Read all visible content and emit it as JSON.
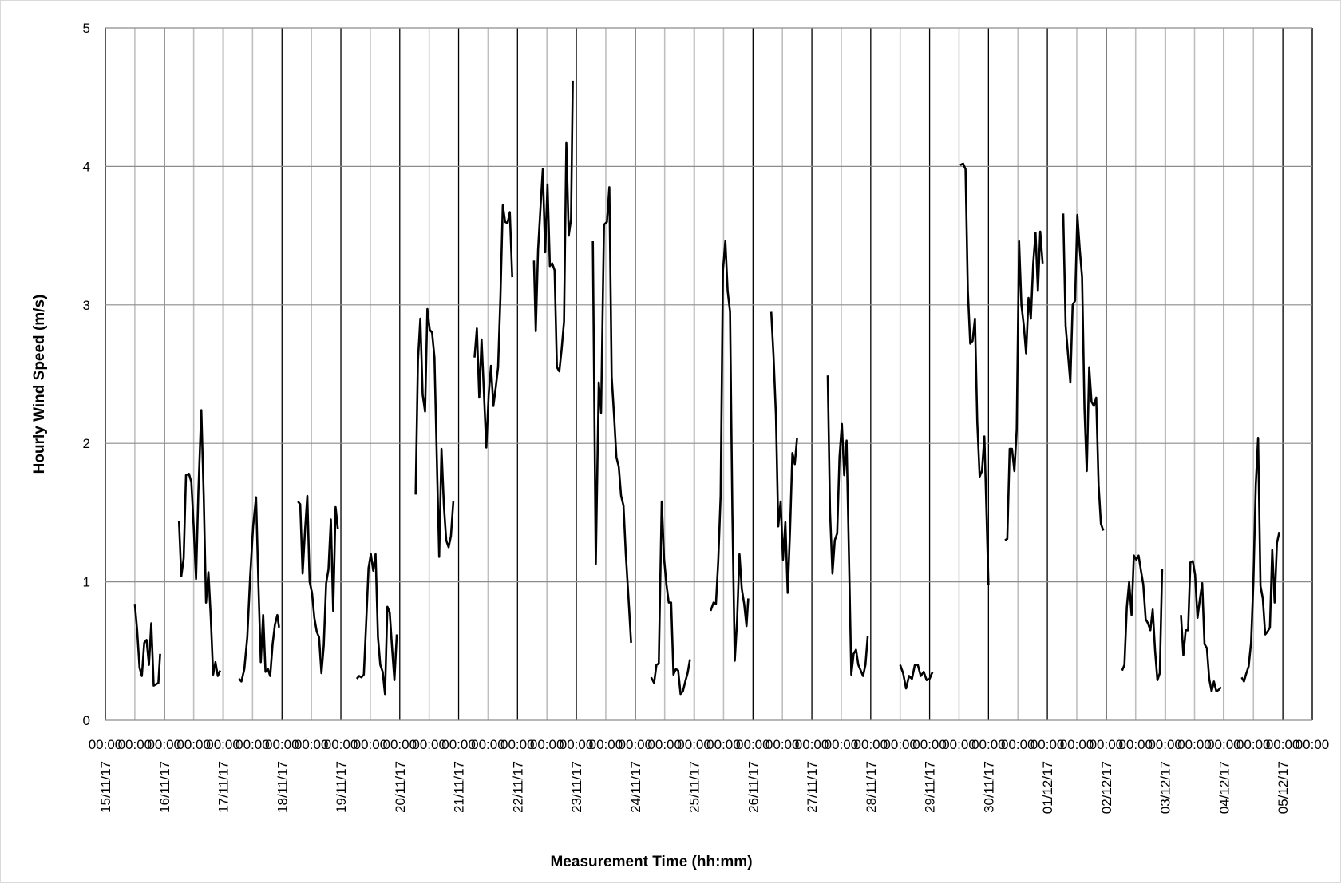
{
  "chart_data": {
    "type": "line",
    "title": "",
    "xlabel": "Measurement Time (hh:mm)",
    "ylabel": "Hourly Wind Speed (m/s)",
    "ylim": [
      0,
      5
    ],
    "yticks": [
      "0",
      "1",
      "2",
      "3",
      "4",
      "5"
    ],
    "x_unit": "day",
    "xlim": [
      0,
      20.5
    ],
    "x_tick_time_label": "00:00",
    "x_date_labels": [
      "15/11/17",
      "16/11/17",
      "17/11/17",
      "18/11/17",
      "19/11/17",
      "20/11/17",
      "21/11/17",
      "22/11/17",
      "23/11/17",
      "24/11/17",
      "25/11/17",
      "26/11/17",
      "27/11/17",
      "28/11/17",
      "29/11/17",
      "30/11/17",
      "01/12/17",
      "02/12/17",
      "03/12/17",
      "04/12/17",
      "05/12/17"
    ],
    "grid": true,
    "legend": "none",
    "line_color": "#000000",
    "grid_major_color": "#000000",
    "grid_minor_color": "#bfbfbf",
    "segments": [
      [
        [
          0.5,
          0.84
        ],
        [
          0.54,
          0.65
        ],
        [
          0.58,
          0.38
        ],
        [
          0.62,
          0.32
        ],
        [
          0.66,
          0.56
        ],
        [
          0.7,
          0.58
        ],
        [
          0.74,
          0.4
        ],
        [
          0.78,
          0.7
        ],
        [
          0.82,
          0.25
        ],
        [
          0.86,
          0.26
        ],
        [
          0.9,
          0.27
        ],
        [
          0.93,
          0.48
        ]
      ],
      [
        [
          1.25,
          1.44
        ],
        [
          1.29,
          1.04
        ],
        [
          1.33,
          1.17
        ],
        [
          1.37,
          1.77
        ],
        [
          1.42,
          1.78
        ],
        [
          1.46,
          1.72
        ],
        [
          1.5,
          1.4
        ],
        [
          1.54,
          1.02
        ],
        [
          1.58,
          1.65
        ],
        [
          1.63,
          2.24
        ],
        [
          1.67,
          1.62
        ],
        [
          1.71,
          0.85
        ],
        [
          1.75,
          1.07
        ],
        [
          1.79,
          0.75
        ],
        [
          1.83,
          0.33
        ],
        [
          1.87,
          0.42
        ],
        [
          1.91,
          0.32
        ],
        [
          1.95,
          0.36
        ]
      ],
      [
        [
          2.27,
          0.3
        ],
        [
          2.31,
          0.28
        ],
        [
          2.36,
          0.37
        ],
        [
          2.41,
          0.6
        ],
        [
          2.46,
          1.04
        ],
        [
          2.51,
          1.4
        ],
        [
          2.56,
          1.61
        ],
        [
          2.6,
          0.97
        ],
        [
          2.64,
          0.42
        ],
        [
          2.68,
          0.76
        ],
        [
          2.72,
          0.35
        ],
        [
          2.76,
          0.37
        ],
        [
          2.8,
          0.32
        ],
        [
          2.84,
          0.55
        ],
        [
          2.88,
          0.69
        ],
        [
          2.92,
          0.76
        ],
        [
          2.95,
          0.67
        ]
      ],
      [
        [
          3.27,
          1.58
        ],
        [
          3.31,
          1.56
        ],
        [
          3.35,
          1.06
        ],
        [
          3.39,
          1.36
        ],
        [
          3.43,
          1.62
        ],
        [
          3.47,
          1.0
        ],
        [
          3.51,
          0.92
        ],
        [
          3.55,
          0.74
        ],
        [
          3.59,
          0.64
        ],
        [
          3.63,
          0.6
        ],
        [
          3.67,
          0.34
        ],
        [
          3.71,
          0.54
        ],
        [
          3.75,
          0.99
        ],
        [
          3.79,
          1.09
        ],
        [
          3.83,
          1.45
        ],
        [
          3.87,
          0.79
        ],
        [
          3.91,
          1.54
        ],
        [
          3.95,
          1.38
        ]
      ],
      [
        [
          4.27,
          0.3
        ],
        [
          4.31,
          0.32
        ],
        [
          4.35,
          0.31
        ],
        [
          4.39,
          0.33
        ],
        [
          4.43,
          0.7
        ],
        [
          4.47,
          1.1
        ],
        [
          4.51,
          1.2
        ],
        [
          4.55,
          1.08
        ],
        [
          4.59,
          1.2
        ],
        [
          4.63,
          0.6
        ],
        [
          4.67,
          0.4
        ],
        [
          4.71,
          0.35
        ],
        [
          4.75,
          0.19
        ],
        [
          4.79,
          0.82
        ],
        [
          4.83,
          0.78
        ],
        [
          4.87,
          0.52
        ],
        [
          4.91,
          0.29
        ],
        [
          4.95,
          0.62
        ]
      ],
      [
        [
          5.27,
          1.63
        ],
        [
          5.31,
          2.6
        ],
        [
          5.35,
          2.9
        ],
        [
          5.39,
          2.35
        ],
        [
          5.43,
          2.23
        ],
        [
          5.47,
          2.97
        ],
        [
          5.51,
          2.82
        ],
        [
          5.55,
          2.8
        ],
        [
          5.59,
          2.62
        ],
        [
          5.63,
          1.9
        ],
        [
          5.67,
          1.18
        ],
        [
          5.71,
          1.96
        ],
        [
          5.75,
          1.55
        ],
        [
          5.79,
          1.3
        ],
        [
          5.83,
          1.25
        ],
        [
          5.87,
          1.33
        ],
        [
          5.91,
          1.58
        ]
      ],
      [
        [
          6.27,
          2.62
        ],
        [
          6.31,
          2.83
        ],
        [
          6.35,
          2.33
        ],
        [
          6.39,
          2.75
        ],
        [
          6.43,
          2.36
        ],
        [
          6.47,
          1.97
        ],
        [
          6.51,
          2.35
        ],
        [
          6.55,
          2.56
        ],
        [
          6.59,
          2.27
        ],
        [
          6.63,
          2.4
        ],
        [
          6.67,
          2.55
        ],
        [
          6.71,
          3.05
        ],
        [
          6.75,
          3.72
        ],
        [
          6.79,
          3.6
        ],
        [
          6.83,
          3.59
        ],
        [
          6.87,
          3.67
        ],
        [
          6.91,
          3.2
        ]
      ],
      [
        [
          7.28,
          3.32
        ],
        [
          7.31,
          2.81
        ],
        [
          7.35,
          3.4
        ],
        [
          7.39,
          3.7
        ],
        [
          7.43,
          3.98
        ],
        [
          7.47,
          3.38
        ],
        [
          7.51,
          3.87
        ],
        [
          7.55,
          3.28
        ],
        [
          7.59,
          3.3
        ],
        [
          7.63,
          3.25
        ],
        [
          7.67,
          2.55
        ],
        [
          7.71,
          2.52
        ],
        [
          7.75,
          2.68
        ],
        [
          7.79,
          2.88
        ],
        [
          7.83,
          4.17
        ],
        [
          7.87,
          3.5
        ],
        [
          7.91,
          3.62
        ],
        [
          7.94,
          4.62
        ]
      ],
      [
        [
          8.28,
          3.46
        ],
        [
          8.33,
          1.13
        ],
        [
          8.38,
          2.44
        ],
        [
          8.42,
          2.22
        ],
        [
          8.47,
          3.58
        ],
        [
          8.52,
          3.6
        ],
        [
          8.56,
          3.85
        ],
        [
          8.6,
          2.48
        ],
        [
          8.64,
          2.2
        ],
        [
          8.68,
          1.9
        ],
        [
          8.72,
          1.83
        ],
        [
          8.76,
          1.62
        ],
        [
          8.8,
          1.55
        ],
        [
          8.84,
          1.2
        ],
        [
          8.89,
          0.85
        ],
        [
          8.93,
          0.56
        ]
      ],
      [
        [
          9.27,
          0.31
        ],
        [
          9.32,
          0.27
        ],
        [
          9.36,
          0.4
        ],
        [
          9.4,
          0.41
        ],
        [
          9.45,
          1.58
        ],
        [
          9.49,
          1.17
        ],
        [
          9.53,
          0.98
        ],
        [
          9.57,
          0.85
        ],
        [
          9.61,
          0.85
        ],
        [
          9.65,
          0.33
        ],
        [
          9.69,
          0.37
        ],
        [
          9.73,
          0.36
        ],
        [
          9.77,
          0.19
        ],
        [
          9.81,
          0.21
        ],
        [
          9.85,
          0.28
        ],
        [
          9.89,
          0.34
        ],
        [
          9.93,
          0.44
        ]
      ],
      [
        [
          10.28,
          0.79
        ],
        [
          10.33,
          0.85
        ],
        [
          10.37,
          0.84
        ],
        [
          10.41,
          1.15
        ],
        [
          10.45,
          1.62
        ],
        [
          10.49,
          3.25
        ],
        [
          10.53,
          3.46
        ],
        [
          10.57,
          3.1
        ],
        [
          10.61,
          2.95
        ],
        [
          10.65,
          1.5
        ],
        [
          10.69,
          0.43
        ],
        [
          10.73,
          0.72
        ],
        [
          10.77,
          1.2
        ],
        [
          10.81,
          0.95
        ],
        [
          10.85,
          0.84
        ],
        [
          10.89,
          0.68
        ],
        [
          10.92,
          0.88
        ]
      ],
      [
        [
          11.31,
          2.95
        ],
        [
          11.35,
          2.63
        ],
        [
          11.39,
          2.2
        ],
        [
          11.43,
          1.4
        ],
        [
          11.47,
          1.58
        ],
        [
          11.51,
          1.16
        ],
        [
          11.55,
          1.43
        ],
        [
          11.59,
          0.92
        ],
        [
          11.63,
          1.38
        ],
        [
          11.67,
          1.93
        ],
        [
          11.71,
          1.85
        ],
        [
          11.75,
          2.04
        ]
      ],
      [
        [
          12.27,
          2.49
        ],
        [
          12.31,
          1.5
        ],
        [
          12.35,
          1.06
        ],
        [
          12.39,
          1.3
        ],
        [
          12.43,
          1.35
        ],
        [
          12.47,
          1.9
        ],
        [
          12.51,
          2.14
        ],
        [
          12.55,
          1.77
        ],
        [
          12.59,
          2.02
        ],
        [
          12.63,
          1.2
        ],
        [
          12.67,
          0.33
        ],
        [
          12.71,
          0.48
        ],
        [
          12.75,
          0.51
        ],
        [
          12.79,
          0.4
        ],
        [
          12.83,
          0.36
        ],
        [
          12.87,
          0.32
        ],
        [
          12.91,
          0.4
        ],
        [
          12.95,
          0.61
        ]
      ],
      [
        [
          13.5,
          0.4
        ],
        [
          13.55,
          0.34
        ],
        [
          13.6,
          0.23
        ],
        [
          13.65,
          0.32
        ],
        [
          13.7,
          0.3
        ],
        [
          13.75,
          0.4
        ],
        [
          13.8,
          0.4
        ],
        [
          13.85,
          0.32
        ],
        [
          13.9,
          0.35
        ],
        [
          13.95,
          0.29
        ],
        [
          14.0,
          0.3
        ],
        [
          14.05,
          0.35
        ]
      ],
      [
        [
          14.52,
          4.01
        ],
        [
          14.57,
          4.02
        ],
        [
          14.61,
          3.98
        ],
        [
          14.65,
          3.1
        ],
        [
          14.69,
          2.72
        ],
        [
          14.73,
          2.74
        ],
        [
          14.77,
          2.9
        ],
        [
          14.81,
          2.15
        ],
        [
          14.85,
          1.76
        ],
        [
          14.89,
          1.8
        ],
        [
          14.93,
          2.05
        ],
        [
          14.97,
          1.45
        ],
        [
          15.0,
          0.98
        ]
      ],
      [
        [
          15.28,
          1.3
        ],
        [
          15.32,
          1.31
        ],
        [
          15.36,
          1.96
        ],
        [
          15.4,
          1.96
        ],
        [
          15.44,
          1.8
        ],
        [
          15.48,
          2.1
        ],
        [
          15.52,
          3.46
        ],
        [
          15.56,
          3.0
        ],
        [
          15.6,
          2.85
        ],
        [
          15.64,
          2.65
        ],
        [
          15.68,
          3.05
        ],
        [
          15.72,
          2.9
        ],
        [
          15.76,
          3.3
        ],
        [
          15.8,
          3.52
        ],
        [
          15.84,
          3.1
        ],
        [
          15.88,
          3.53
        ],
        [
          15.92,
          3.3
        ]
      ],
      [
        [
          16.27,
          3.66
        ],
        [
          16.31,
          2.85
        ],
        [
          16.35,
          2.65
        ],
        [
          16.39,
          2.44
        ],
        [
          16.43,
          3.0
        ],
        [
          16.47,
          3.03
        ],
        [
          16.51,
          3.65
        ],
        [
          16.55,
          3.4
        ],
        [
          16.59,
          3.2
        ],
        [
          16.63,
          2.25
        ],
        [
          16.67,
          1.8
        ],
        [
          16.71,
          2.55
        ],
        [
          16.75,
          2.3
        ],
        [
          16.79,
          2.27
        ],
        [
          16.83,
          2.33
        ],
        [
          16.87,
          1.7
        ],
        [
          16.91,
          1.42
        ],
        [
          16.95,
          1.37
        ]
      ],
      [
        [
          17.27,
          0.36
        ],
        [
          17.31,
          0.4
        ],
        [
          17.35,
          0.82
        ],
        [
          17.39,
          1.0
        ],
        [
          17.43,
          0.76
        ],
        [
          17.47,
          1.19
        ],
        [
          17.51,
          1.16
        ],
        [
          17.55,
          1.19
        ],
        [
          17.59,
          1.08
        ],
        [
          17.63,
          0.98
        ],
        [
          17.67,
          0.73
        ],
        [
          17.71,
          0.7
        ],
        [
          17.75,
          0.65
        ],
        [
          17.79,
          0.8
        ],
        [
          17.83,
          0.5
        ],
        [
          17.87,
          0.29
        ],
        [
          17.91,
          0.34
        ],
        [
          17.95,
          1.09
        ]
      ],
      [
        [
          18.27,
          0.76
        ],
        [
          18.31,
          0.47
        ],
        [
          18.35,
          0.65
        ],
        [
          18.39,
          0.65
        ],
        [
          18.43,
          1.14
        ],
        [
          18.47,
          1.15
        ],
        [
          18.51,
          1.05
        ],
        [
          18.55,
          0.74
        ],
        [
          18.59,
          0.87
        ],
        [
          18.63,
          0.99
        ],
        [
          18.67,
          0.55
        ],
        [
          18.71,
          0.52
        ],
        [
          18.75,
          0.3
        ],
        [
          18.79,
          0.21
        ],
        [
          18.83,
          0.28
        ],
        [
          18.87,
          0.21
        ],
        [
          18.91,
          0.22
        ],
        [
          18.95,
          0.24
        ]
      ],
      [
        [
          19.3,
          0.31
        ],
        [
          19.34,
          0.28
        ],
        [
          19.38,
          0.34
        ],
        [
          19.42,
          0.39
        ],
        [
          19.46,
          0.56
        ],
        [
          19.5,
          1.0
        ],
        [
          19.54,
          1.7
        ],
        [
          19.58,
          2.04
        ],
        [
          19.62,
          0.97
        ],
        [
          19.66,
          0.88
        ],
        [
          19.7,
          0.62
        ],
        [
          19.74,
          0.64
        ],
        [
          19.78,
          0.67
        ],
        [
          19.82,
          1.23
        ],
        [
          19.86,
          0.85
        ],
        [
          19.9,
          1.28
        ],
        [
          19.94,
          1.36
        ]
      ]
    ]
  }
}
